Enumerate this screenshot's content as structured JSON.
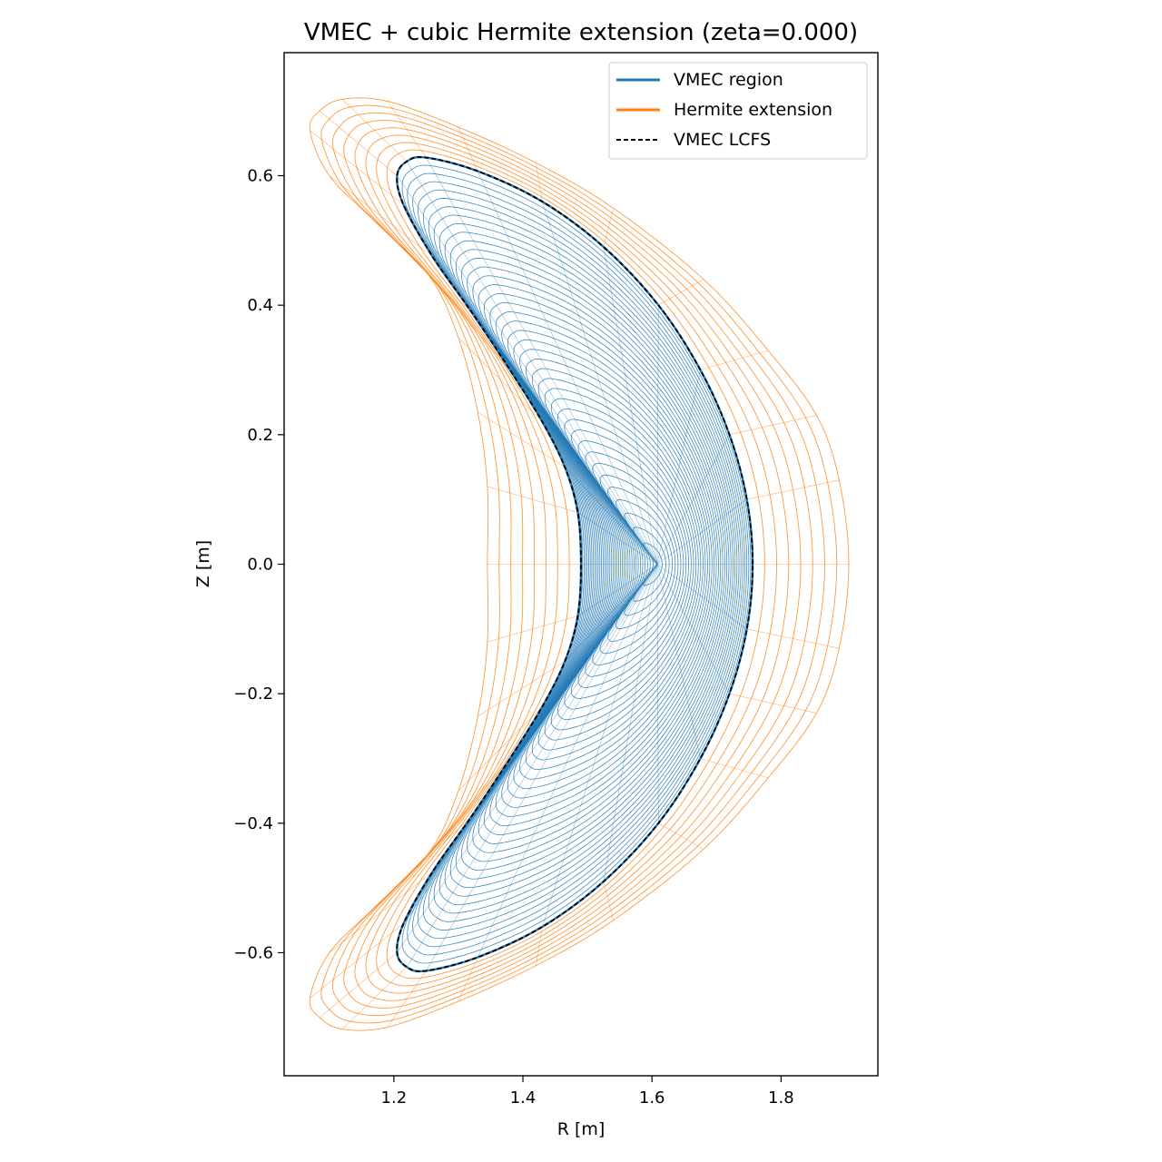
{
  "chart_data": {
    "type": "line",
    "title": "VMEC + cubic Hermite extension (zeta=0.000)",
    "xlabel": "R [m]",
    "ylabel": "Z [m]",
    "xlim": [
      1.03,
      1.95
    ],
    "ylim": [
      -0.79,
      0.79
    ],
    "xticks": [
      1.2,
      1.4,
      1.6,
      1.8
    ],
    "yticks": [
      -0.6,
      -0.4,
      -0.2,
      0.0,
      0.2,
      0.4,
      0.6
    ],
    "xtick_labels": [
      "1.2",
      "1.4",
      "1.6",
      "1.8"
    ],
    "ytick_labels": [
      "−0.6",
      "−0.4",
      "−0.2",
      "0.0",
      "0.2",
      "0.4",
      "0.6"
    ],
    "legend_position": "top-right",
    "grid": false,
    "series": [
      {
        "name": "VMEC region",
        "color": "#1f77b4",
        "style": "solid",
        "magnetic_axis": [
          1.608,
          0.0
        ],
        "num_flux_surfaces": 40,
        "num_poloidal_lines": 36
      },
      {
        "name": "Hermite extension",
        "color": "#ff7f0e",
        "style": "solid",
        "num_extension_surfaces": 8,
        "num_poloidal_lines": 36
      },
      {
        "name": "VMEC LCFS",
        "color": "#000000",
        "style": "dashed",
        "points": [
          [
            1.756,
            0.0
          ],
          [
            1.747,
            0.1
          ],
          [
            1.72,
            0.2
          ],
          [
            1.675,
            0.3
          ],
          [
            1.61,
            0.4
          ],
          [
            1.525,
            0.49
          ],
          [
            1.43,
            0.56
          ],
          [
            1.33,
            0.607
          ],
          [
            1.25,
            0.628
          ],
          [
            1.22,
            0.622
          ],
          [
            1.205,
            0.6
          ],
          [
            1.215,
            0.555
          ],
          [
            1.26,
            0.475
          ],
          [
            1.32,
            0.39
          ],
          [
            1.38,
            0.3
          ],
          [
            1.43,
            0.22
          ],
          [
            1.465,
            0.15
          ],
          [
            1.485,
            0.08
          ],
          [
            1.49,
            0.0
          ]
        ]
      }
    ],
    "extension_outer_boundary": [
      [
        1.905,
        0.0
      ],
      [
        1.89,
        0.13
      ],
      [
        1.855,
        0.23
      ],
      [
        1.78,
        0.33
      ],
      [
        1.68,
        0.44
      ],
      [
        1.54,
        0.55
      ],
      [
        1.42,
        0.62
      ],
      [
        1.3,
        0.675
      ],
      [
        1.19,
        0.715
      ],
      [
        1.12,
        0.718
      ],
      [
        1.085,
        0.7
      ],
      [
        1.07,
        0.67
      ],
      [
        1.1,
        0.6
      ],
      [
        1.17,
        0.53
      ],
      [
        1.255,
        0.445
      ],
      [
        1.3,
        0.35
      ],
      [
        1.33,
        0.235
      ],
      [
        1.345,
        0.12
      ],
      [
        1.345,
        0.0
      ]
    ]
  }
}
